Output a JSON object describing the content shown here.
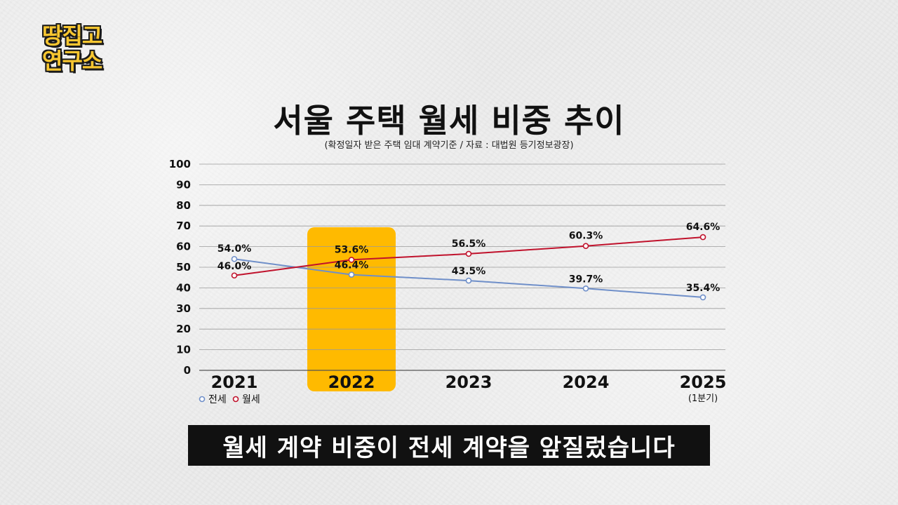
{
  "logo": {
    "line1": "땅집고",
    "line2": "연구소"
  },
  "caption": "월세 계약 비중이 전세 계약을 앞질렀습니다",
  "colors": {
    "jeonse": "#6f8fc9",
    "wolse": "#c0122c",
    "highlight": "#ffba00"
  },
  "chart_data": {
    "type": "line",
    "title": "서울 주택 월세 비중 추이",
    "subtitle": "(확정일자 받은 주택 임대 계약기준 / 자료 : 대법원 등기정보광장)",
    "categories": [
      "2021",
      "2022",
      "2023",
      "2024",
      "2025"
    ],
    "category_notes": [
      "",
      "",
      "",
      "",
      "(1분기)"
    ],
    "highlighted_category": "2022",
    "ylim": [
      0,
      100
    ],
    "yticks": [
      "0",
      "10",
      "20",
      "30",
      "40",
      "50",
      "60",
      "70",
      "80",
      "90",
      "100"
    ],
    "grid": true,
    "legend_position": "bottom-left",
    "series": [
      {
        "name": "전세",
        "values": [
          54.0,
          46.4,
          43.5,
          39.7,
          35.4
        ],
        "labels": [
          "54.0%",
          "46.4%",
          "43.5%",
          "39.7%",
          "35.4%"
        ]
      },
      {
        "name": "월세",
        "values": [
          46.0,
          53.6,
          56.5,
          60.3,
          64.6
        ],
        "labels": [
          "46.0%",
          "53.6%",
          "56.5%",
          "60.3%",
          "64.6%"
        ]
      }
    ]
  }
}
